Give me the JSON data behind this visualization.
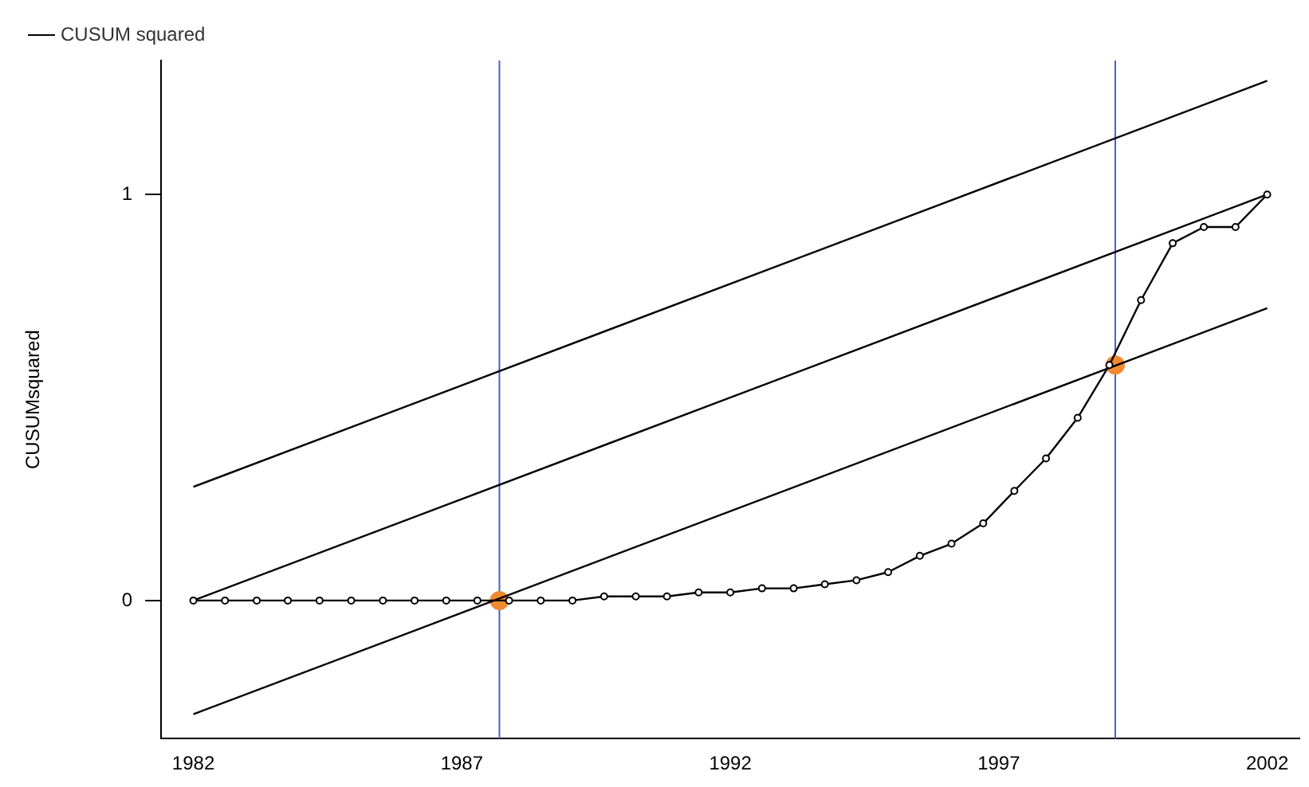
{
  "chart_data": {
    "type": "line",
    "ylabel": "CUSUMsquared",
    "xlim": [
      1981.4,
      2002.6
    ],
    "xticks": [
      1982,
      1987,
      1992,
      1997,
      2002
    ],
    "ylim": [
      -0.34,
      1.33
    ],
    "yticks": [
      0,
      1
    ],
    "grid": false,
    "legend": "top left",
    "x": [
      1982,
      1982.59,
      1983.18,
      1983.76,
      1984.35,
      1984.94,
      1985.53,
      1986.12,
      1986.71,
      1987.29,
      1987.88,
      1988.47,
      1989.06,
      1989.65,
      1990.24,
      1990.82,
      1991.41,
      1992,
      1992.59,
      1993.18,
      1993.76,
      1994.35,
      1994.94,
      1995.53,
      1996.12,
      1996.71,
      1997.29,
      1997.88,
      1998.47,
      1999.06,
      1999.65,
      2000.24,
      2000.82,
      2001.41,
      2002
    ],
    "series": [
      {
        "name": "CUSUM squared",
        "color": "#000000",
        "marker": "circle",
        "values": [
          0,
          0,
          0,
          0,
          0,
          0,
          0,
          0,
          0,
          0,
          0,
          0,
          0,
          0.01,
          0.01,
          0.01,
          0.02,
          0.02,
          0.03,
          0.03,
          0.04,
          0.05,
          0.07,
          0.11,
          0.14,
          0.19,
          0.27,
          0.35,
          0.45,
          0.58,
          0.74,
          0.88,
          0.92,
          0.92,
          1
        ]
      },
      {
        "type": "line",
        "color": "#000000",
        "marker": "none",
        "x": [
          1982,
          2002
        ],
        "values": [
          0.28,
          1.28
        ]
      },
      {
        "type": "line",
        "color": "#000000",
        "marker": "none",
        "x": [
          1982,
          2002
        ],
        "values": [
          0,
          1
        ]
      },
      {
        "type": "line",
        "color": "#000000",
        "marker": "none",
        "x": [
          1982,
          2002
        ],
        "values": [
          -0.28,
          0.72
        ]
      },
      {
        "type": "scatter",
        "color": "#f08a30",
        "marker": "circle",
        "x": [
          1987.7,
          1999.17
        ],
        "values": [
          0,
          0.58
        ]
      }
    ],
    "ref_lines": [
      {
        "axis": "x",
        "value": 1987.7,
        "color": "#4a5fc8"
      },
      {
        "axis": "x",
        "value": 1999.17,
        "color": "#4a5fc8"
      }
    ]
  }
}
